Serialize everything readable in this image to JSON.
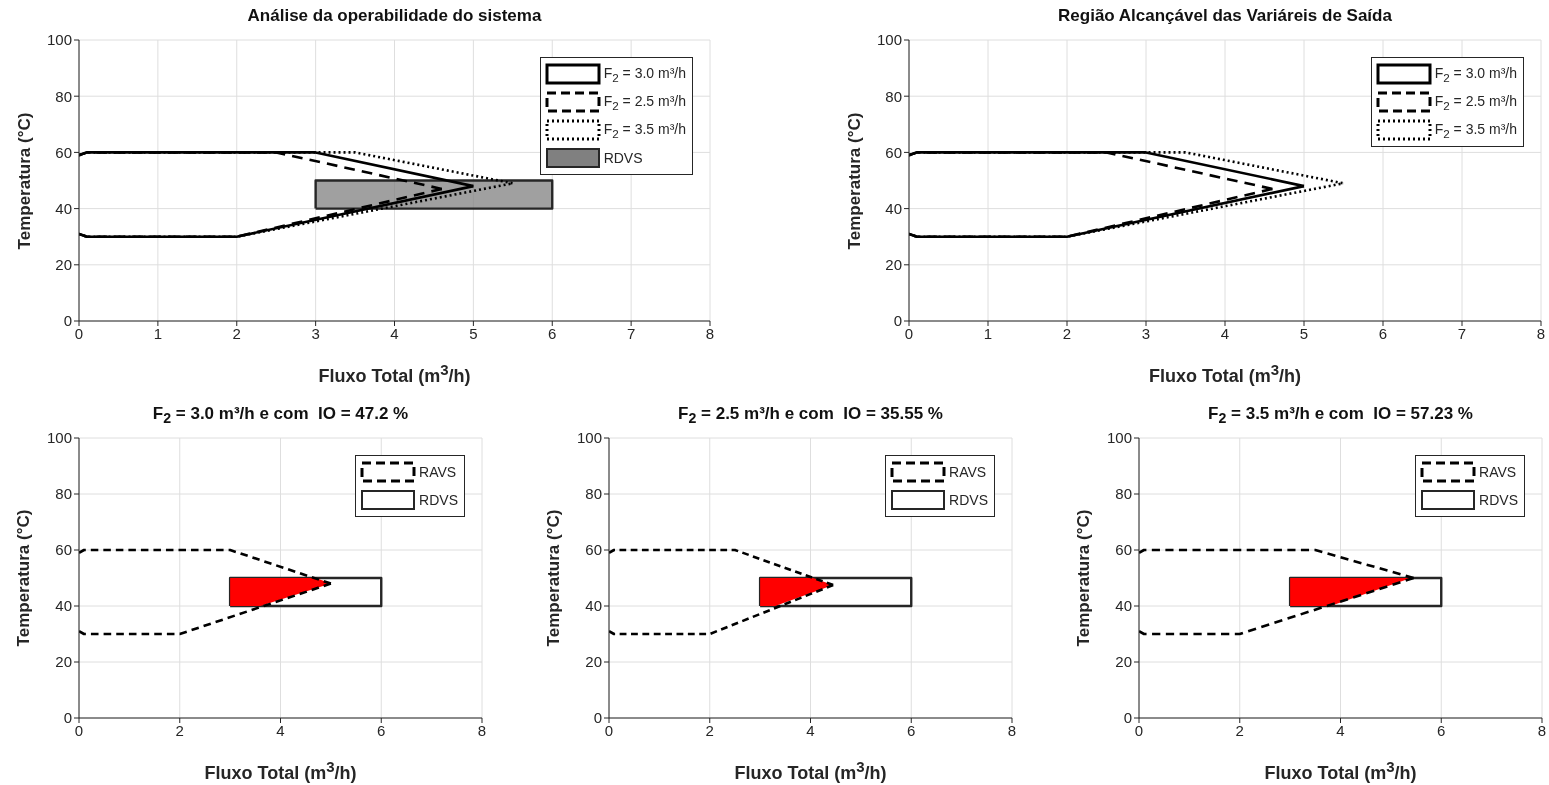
{
  "chart_data": [
    {
      "type": "line",
      "title": "Análise da operabilidade do sistema",
      "xlabel": "Fluxo Total (m$^{3}$/h)",
      "ylabel": "Temperatura (°C)",
      "xlim": [
        0,
        8
      ],
      "xticks": [
        0,
        1,
        2,
        3,
        4,
        5,
        6,
        7,
        8
      ],
      "ylim": [
        0,
        100
      ],
      "yticks": [
        0,
        20,
        40,
        60,
        80,
        100
      ],
      "grid": true,
      "legend": "top right",
      "marker": "none",
      "series": [
        {
          "name": "F$_{2}$ = 3.0 m³/h",
          "line_style": "solid",
          "color": "#000000",
          "x": [
            0,
            0.1,
            3.0,
            5.0
          ],
          "values": [
            59,
            60,
            60,
            48
          ]
        },
        {
          "line_style": "solid",
          "color": "#000000",
          "x": [
            0,
            0.1,
            2.0,
            5.0
          ],
          "values": [
            31,
            30,
            30,
            48
          ]
        },
        {
          "name": "F$_{2}$ = 2.5 m³/h",
          "line_style": "dashed",
          "color": "#000000",
          "x": [
            0,
            0.1,
            2.5,
            4.6
          ],
          "values": [
            59,
            60,
            60,
            47
          ]
        },
        {
          "line_style": "dashed",
          "color": "#000000",
          "x": [
            0,
            0.1,
            2.0,
            4.6
          ],
          "values": [
            31,
            30,
            30,
            47
          ]
        },
        {
          "name": "F$_{2}$ = 3.5 m³/h",
          "line_style": "dotted",
          "color": "#000000",
          "x": [
            0,
            0.1,
            3.5,
            5.5
          ],
          "values": [
            59,
            60,
            60,
            49
          ]
        },
        {
          "line_style": "dotted",
          "color": "#000000",
          "x": [
            0,
            0.1,
            2.0,
            5.5
          ],
          "values": [
            31,
            30,
            30,
            49
          ]
        },
        {
          "name": "RDVS",
          "type": "area",
          "color": "#808080",
          "x": [
            3,
            6,
            6,
            3,
            3
          ],
          "values": [
            40,
            40,
            50,
            50,
            40
          ]
        }
      ]
    },
    {
      "type": "line",
      "title": "Região Alcançável das Variáreis de Saída",
      "xlabel": "Fluxo Total (m$^{3}$/h)",
      "ylabel": "Temperatura (°C)",
      "xlim": [
        0,
        8
      ],
      "xticks": [
        0,
        1,
        2,
        3,
        4,
        5,
        6,
        7,
        8
      ],
      "ylim": [
        0,
        100
      ],
      "yticks": [
        0,
        20,
        40,
        60,
        80,
        100
      ],
      "grid": true,
      "legend": "top right",
      "marker": "none",
      "series": [
        {
          "name": "F$_{2}$ = 3.0 m³/h",
          "line_style": "solid",
          "color": "#000000",
          "x": [
            0,
            0.1,
            3.0,
            5.0
          ],
          "values": [
            59,
            60,
            60,
            48
          ]
        },
        {
          "line_style": "solid",
          "color": "#000000",
          "x": [
            0,
            0.1,
            2.0,
            5.0
          ],
          "values": [
            31,
            30,
            30,
            48
          ]
        },
        {
          "name": "F$_{2}$ = 2.5 m³/h",
          "line_style": "dashed",
          "color": "#000000",
          "x": [
            0,
            0.1,
            2.5,
            4.6
          ],
          "values": [
            59,
            60,
            60,
            47
          ]
        },
        {
          "line_style": "dashed",
          "color": "#000000",
          "x": [
            0,
            0.1,
            2.0,
            4.6
          ],
          "values": [
            31,
            30,
            30,
            47
          ]
        },
        {
          "name": "F$_{2}$ = 3.5 m³/h",
          "line_style": "dotted",
          "color": "#000000",
          "x": [
            0,
            0.1,
            3.5,
            5.5
          ],
          "values": [
            59,
            60,
            60,
            49
          ]
        },
        {
          "line_style": "dotted",
          "color": "#000000",
          "x": [
            0,
            0.1,
            2.0,
            5.5
          ],
          "values": [
            31,
            30,
            30,
            49
          ]
        }
      ]
    },
    {
      "type": "line",
      "title": "F$_{2}$ = 3.0 m³/h e com  IO = 47.2 %",
      "xlabel": "Fluxo Total (m$^{3}$/h)",
      "ylabel": "Temperatura (°C)",
      "xlim": [
        0,
        8
      ],
      "xticks": [
        0,
        2,
        4,
        6,
        8
      ],
      "ylim": [
        0,
        100
      ],
      "yticks": [
        0,
        20,
        40,
        60,
        80,
        100
      ],
      "grid": true,
      "legend": "top right",
      "marker": "none",
      "series": [
        {
          "name": "RAVS",
          "line_style": "dashed",
          "color": "#000000",
          "x": [
            0,
            0.1,
            3.0,
            5.0
          ],
          "values": [
            59,
            60,
            60,
            48
          ]
        },
        {
          "line_style": "dashed",
          "color": "#000000",
          "x": [
            0,
            0.1,
            2.0,
            5.0
          ],
          "values": [
            31,
            30,
            30,
            48
          ]
        },
        {
          "name": "RDVS",
          "type": "area",
          "color": "#ffffff",
          "x": [
            3,
            6,
            6,
            3,
            3
          ],
          "values": [
            40,
            40,
            50,
            50,
            40
          ]
        },
        {
          "type": "area",
          "color": "#ff0000",
          "x": [
            3,
            4.7,
            5.0,
            3.6,
            3,
            3
          ],
          "values": [
            50,
            50,
            48,
            40,
            40,
            50
          ]
        }
      ]
    },
    {
      "type": "line",
      "title": "F$_{2}$ = 2.5 m³/h e com  IO = 35.55 %",
      "xlabel": "Fluxo Total (m$^{3}$/h)",
      "ylabel": "Temperatura (°C)",
      "xlim": [
        0,
        8
      ],
      "xticks": [
        0,
        2,
        4,
        6,
        8
      ],
      "ylim": [
        0,
        100
      ],
      "yticks": [
        0,
        20,
        40,
        60,
        80,
        100
      ],
      "grid": true,
      "legend": "top right",
      "marker": "none",
      "series": [
        {
          "name": "RAVS",
          "line_style": "dashed",
          "color": "#000000",
          "x": [
            0,
            0.1,
            2.5,
            4.45
          ],
          "values": [
            59,
            60,
            60,
            47.5
          ]
        },
        {
          "line_style": "dashed",
          "color": "#000000",
          "x": [
            0,
            0.1,
            2.0,
            4.45
          ],
          "values": [
            31,
            30,
            30,
            47.5
          ]
        },
        {
          "name": "RDVS",
          "type": "area",
          "color": "#ffffff",
          "x": [
            3,
            6,
            6,
            3,
            3
          ],
          "values": [
            40,
            40,
            50,
            50,
            40
          ]
        },
        {
          "type": "area",
          "color": "#ff0000",
          "x": [
            3,
            4.05,
            4.45,
            3.3,
            3,
            3
          ],
          "values": [
            50,
            50,
            47.5,
            40,
            40,
            50
          ]
        }
      ]
    },
    {
      "type": "line",
      "title": "F$_{2}$ = 3.5 m³/h e com  IO = 57.23 %",
      "xlabel": "Fluxo Total (m$^{3}$/h)",
      "ylabel": "Temperatura (°C)",
      "xlim": [
        0,
        8
      ],
      "xticks": [
        0,
        2,
        4,
        6,
        8
      ],
      "ylim": [
        0,
        100
      ],
      "yticks": [
        0,
        20,
        40,
        60,
        80,
        100
      ],
      "grid": true,
      "legend": "top right",
      "marker": "none",
      "series": [
        {
          "name": "RAVS",
          "line_style": "dashed",
          "color": "#000000",
          "x": [
            0,
            0.1,
            3.5,
            5.45
          ],
          "values": [
            59,
            60,
            60,
            50
          ]
        },
        {
          "line_style": "dashed",
          "color": "#000000",
          "x": [
            0,
            0.1,
            2.0,
            5.45
          ],
          "values": [
            31,
            30,
            30,
            50
          ]
        },
        {
          "name": "RDVS",
          "type": "area",
          "color": "#ffffff",
          "x": [
            3,
            6,
            6,
            3,
            3
          ],
          "values": [
            40,
            40,
            50,
            50,
            40
          ]
        },
        {
          "type": "area",
          "color": "#ff0000",
          "x": [
            3,
            5.4,
            3.8,
            3,
            3
          ],
          "values": [
            50,
            50,
            40,
            40,
            50
          ]
        }
      ]
    }
  ]
}
